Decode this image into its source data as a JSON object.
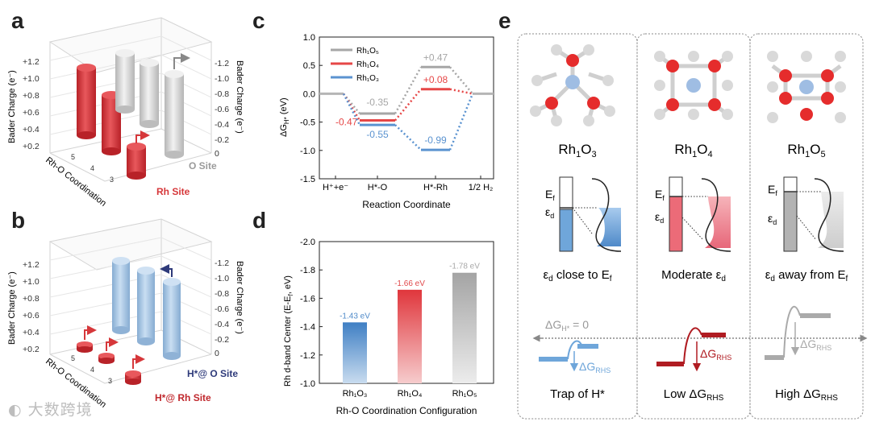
{
  "panels": {
    "a": "a",
    "b": "b",
    "c": "c",
    "d": "d",
    "e": "e"
  },
  "panel_a": {
    "left_axis_title": "Bader Charge (e⁻)",
    "right_axis_title": "Bader Charge (e⁻)",
    "left_ticks": [
      "+1.2",
      "+1.0",
      "+0.8",
      "+0.6",
      "+0.4",
      "+0.2"
    ],
    "right_ticks": [
      "-1.2",
      "-1.0",
      "-0.8",
      "-0.6",
      "-0.4",
      "-0.2",
      "0"
    ],
    "depth_axis_title": "Rh-O Coordination",
    "depth_ticks": [
      "5",
      "4",
      "3"
    ],
    "legend_o": "O Site",
    "legend_rh": "Rh Site",
    "colors": {
      "rh": "#d6373a",
      "o": "#d0d0d0"
    }
  },
  "panel_b": {
    "left_axis_title": "Bader Charge (e⁻)",
    "right_axis_title": "Bader Charge (e⁻)",
    "left_ticks": [
      "+1.2",
      "+1.0",
      "+0.8",
      "+0.6",
      "+0.4",
      "+0.2"
    ],
    "right_ticks": [
      "-1.2",
      "-1.0",
      "-0.8",
      "-0.6",
      "-0.4",
      "-0.2",
      "0"
    ],
    "depth_axis_title": "Rh-O Coordination",
    "depth_ticks": [
      "5",
      "4",
      "3"
    ],
    "legend_o": "H*@ O Site",
    "legend_rh": "H*@ Rh Site",
    "colors": {
      "rh": "#d6373a",
      "o": "#a9c8e6"
    }
  },
  "chart_data": [
    {
      "type": "line",
      "panel": "c",
      "xlabel": "Reaction Coordinate",
      "ylabel": "ΔG_H* (eV)",
      "ylim": [
        -1.5,
        1.0
      ],
      "yticks": [
        "1.0",
        "0.5",
        "0.0",
        "-0.5",
        "-1.0",
        "-1.5"
      ],
      "categories": [
        "H⁺+e⁻",
        "H*-O",
        "H*-Rh",
        "1/2 H₂"
      ],
      "series": [
        {
          "name": "Rh₁O₅",
          "color": "#a6a6a6",
          "values": [
            0,
            -0.35,
            0.47,
            0
          ],
          "labels": [
            "",
            "-0.35",
            "+0.47",
            ""
          ]
        },
        {
          "name": "Rh₁O₄",
          "color": "#e64747",
          "values": [
            0,
            -0.47,
            0.08,
            0
          ],
          "labels": [
            "",
            "-0.47",
            "+0.08",
            ""
          ]
        },
        {
          "name": "Rh₁O₃",
          "color": "#5b93d0",
          "values": [
            0,
            -0.55,
            -0.99,
            0
          ],
          "labels": [
            "",
            "-0.55",
            "-0.99",
            ""
          ]
        }
      ]
    },
    {
      "type": "bar",
      "panel": "d",
      "xlabel": "Rh-O Coordination Configuration",
      "ylabel": "Rh d-band Center (E-E_f, eV)",
      "ylim": [
        -1.0,
        -2.0
      ],
      "yticks": [
        "-2.0",
        "-1.8",
        "-1.6",
        "-1.4",
        "-1.2",
        "-1.0"
      ],
      "categories": [
        "Rh₁O₃",
        "Rh₁O₄",
        "Rh₁O₅"
      ],
      "values": [
        -1.43,
        -1.66,
        -1.78
      ],
      "data_labels": [
        "-1.43 eV",
        "-1.66 eV",
        "-1.78 eV"
      ],
      "colors": [
        "#4f8ac9",
        "#e0484a",
        "#a8a8a8"
      ]
    }
  ],
  "panel_e": {
    "columns": [
      {
        "title": "Rh₁O₃",
        "dband_caption": "ε_d close to E_f",
        "her_caption": "Trap of H*",
        "fill": "#6fa6da"
      },
      {
        "title": "Rh₁O₄",
        "dband_caption": "Moderate ε_d",
        "her_caption": "Low ΔG_RHS",
        "fill": "#ec6b78"
      },
      {
        "title": "Rh₁O₅",
        "dband_caption": "ε_d away from E_f",
        "her_caption": "High ΔG_RHS",
        "fill": "#d6d6d6"
      }
    ],
    "ef_label": "E_f",
    "ed_label": "ε_d",
    "dg_zero": "ΔG_H* = 0",
    "dg_rhs": "ΔG_RHS"
  },
  "watermark": "大数跨境"
}
